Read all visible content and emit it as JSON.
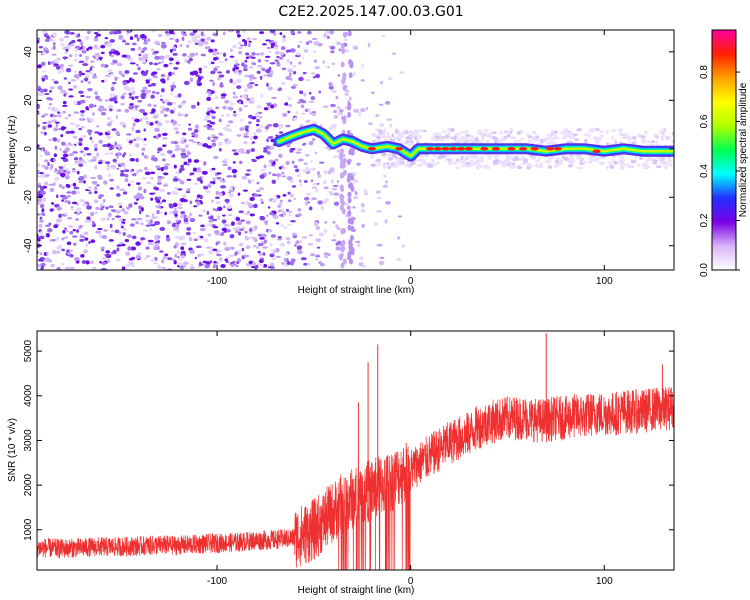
{
  "figure": {
    "title": "C2E2.2025.147.00.03.G01"
  },
  "chart_data": [
    {
      "type": "heatmap",
      "title": "",
      "xlabel": "Height of straight line (km)",
      "ylabel": "Frequency (Hz)",
      "xlim": [
        -193,
        136
      ],
      "ylim": [
        -50,
        49
      ],
      "xticks": [
        "-100",
        "0",
        "100"
      ],
      "yticks": [
        "-40",
        "-20",
        "0",
        "20",
        "40"
      ],
      "colorbar": {
        "label": "Normalized spectral amplitude",
        "range": [
          0,
          0.97
        ],
        "ticks": [
          "0.0",
          "0.2",
          "0.4",
          "0.6",
          "0.8"
        ],
        "colors": [
          "#ffffff",
          "#d8b4f8",
          "#7a00e6",
          "#2030ff",
          "#00ffff",
          "#00ff50",
          "#b0ff00",
          "#ffff00",
          "#ffa000",
          "#ff2000",
          "#ff00a0"
        ]
      },
      "ridge": {
        "description_points_km_hz": [
          [
            -68,
            3
          ],
          [
            -62,
            5
          ],
          [
            -55,
            7
          ],
          [
            -50,
            8
          ],
          [
            -45,
            6
          ],
          [
            -40,
            2
          ],
          [
            -35,
            4
          ],
          [
            -30,
            3
          ],
          [
            -25,
            1
          ],
          [
            -20,
            0
          ],
          [
            -12,
            1
          ],
          [
            -6,
            0
          ],
          [
            0,
            -3
          ],
          [
            4,
            0
          ],
          [
            10,
            0
          ],
          [
            20,
            0
          ],
          [
            30,
            0
          ],
          [
            40,
            0
          ],
          [
            50,
            0
          ],
          [
            60,
            0
          ],
          [
            70,
            -1
          ],
          [
            80,
            0
          ],
          [
            90,
            0
          ],
          [
            100,
            -1
          ],
          [
            110,
            0
          ],
          [
            120,
            -1
          ],
          [
            130,
            -1
          ],
          [
            136,
            -1
          ]
        ]
      }
    },
    {
      "type": "line",
      "title": "",
      "xlabel": "Height of straight line (km)",
      "ylabel": "SNR (10 * v/v)",
      "xlim": [
        -193,
        136
      ],
      "ylim": [
        100,
        5450
      ],
      "xticks": [
        "-100",
        "0",
        "100"
      ],
      "yticks": [
        "1000",
        "2000",
        "3000",
        "4000",
        "5000"
      ],
      "color": "#ee3030",
      "series": [
        {
          "x": [
            -193,
            -180,
            -170,
            -160,
            -150,
            -140,
            -130,
            -120,
            -110,
            -100,
            -90,
            -80,
            -70,
            -60,
            -55,
            -50,
            -45,
            -40,
            -35,
            -30,
            -25,
            -20,
            -15,
            -10,
            -5,
            0,
            5,
            10,
            15,
            20,
            25,
            30,
            35,
            40,
            45,
            50,
            55,
            60,
            65,
            70,
            75,
            80,
            85,
            90,
            95,
            100,
            105,
            110,
            115,
            120,
            125,
            130,
            136
          ],
          "y": [
            600,
            580,
            600,
            620,
            620,
            640,
            660,
            650,
            680,
            700,
            720,
            760,
            780,
            820,
            900,
            1000,
            1200,
            1400,
            1600,
            1700,
            1800,
            1900,
            2000,
            2100,
            2250,
            2350,
            2500,
            2650,
            2800,
            2950,
            3050,
            3150,
            3300,
            3400,
            3450,
            3500,
            3500,
            3500,
            3450,
            3450,
            3500,
            3500,
            3550,
            3550,
            3600,
            3600,
            3600,
            3650,
            3650,
            3650,
            3700,
            3700,
            3750
          ]
        }
      ],
      "spikes": [
        [
          -17,
          5150
        ],
        [
          -22,
          4750
        ],
        [
          -27,
          3850
        ],
        [
          70,
          5400
        ],
        [
          130,
          4700
        ]
      ]
    }
  ]
}
